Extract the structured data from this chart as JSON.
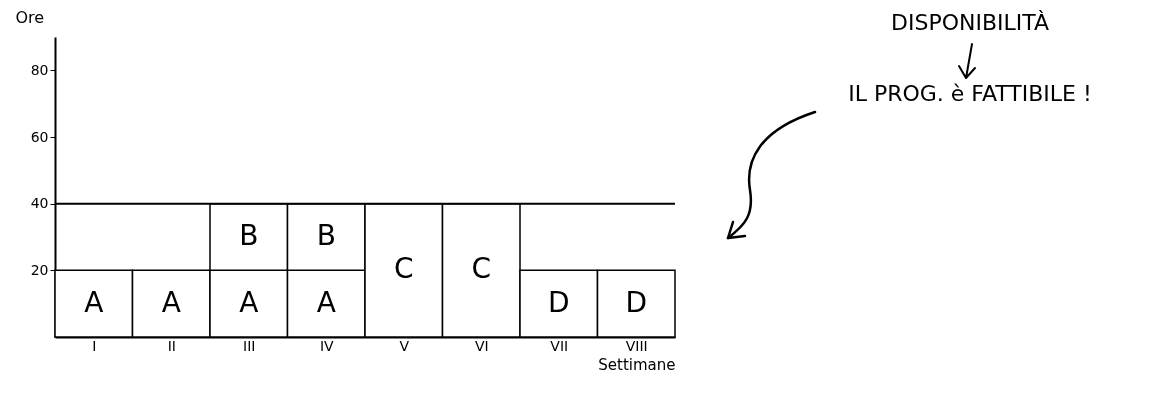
{
  "chart_data": {
    "type": "bar",
    "stacked": true,
    "xlabel": "Settimane",
    "ylabel": "Ore",
    "categories": [
      "I",
      "II",
      "III",
      "IV",
      "V",
      "VI",
      "VII",
      "VIII"
    ],
    "series": [
      {
        "name": "A",
        "color": "#ffffff",
        "values": [
          20,
          20,
          20,
          20,
          null,
          null,
          null,
          null
        ]
      },
      {
        "name": "B",
        "color": "#ffffff",
        "values": [
          null,
          null,
          20,
          20,
          null,
          null,
          null,
          null
        ]
      },
      {
        "name": "C",
        "color": "#ffffff",
        "values": [
          null,
          null,
          null,
          null,
          40,
          40,
          null,
          null
        ]
      },
      {
        "name": "D",
        "color": "#ffffff",
        "values": [
          null,
          null,
          null,
          null,
          null,
          null,
          20,
          20
        ]
      }
    ],
    "ylim": [
      0,
      90
    ],
    "yticks": [
      20,
      40,
      60,
      80
    ],
    "grid": false,
    "ref_lines": [
      {
        "axis": "y",
        "value": 40
      }
    ],
    "annotations": [
      "DISPONIBILITÀ",
      "IL PROG. è FATTIBILE !"
    ]
  }
}
